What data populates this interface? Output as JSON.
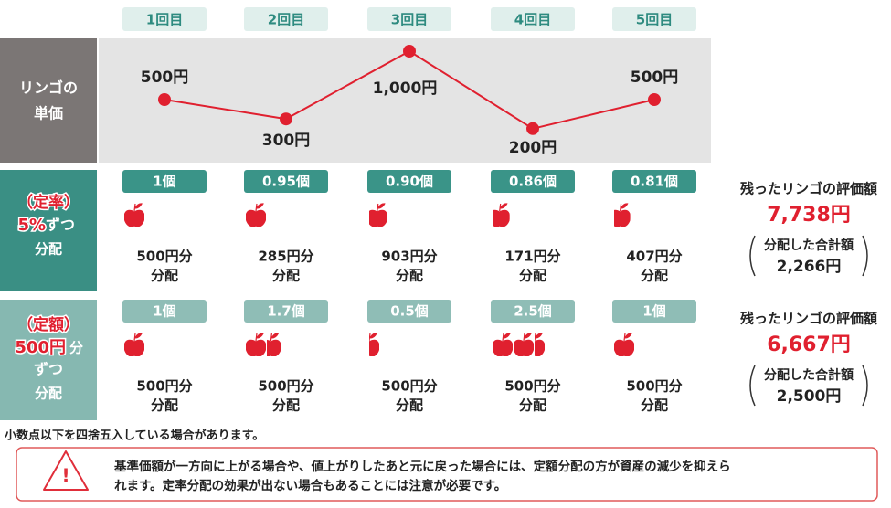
{
  "rounds": [
    "1回目",
    "2回目",
    "3回目",
    "4回目",
    "5回目"
  ],
  "price": {
    "label_lines": [
      "リンゴの",
      "単価"
    ],
    "values": [
      500,
      300,
      1000,
      200,
      500
    ],
    "value_labels": [
      "500円",
      "300円",
      "1,000円",
      "200円",
      "500円"
    ],
    "ylim": [
      0,
      1000
    ]
  },
  "rate": {
    "label_parts": [
      "（定率）",
      "5%",
      "ずつ",
      "分配"
    ],
    "units": [
      "1個",
      "0.95個",
      "0.90個",
      "0.86個",
      "0.81個"
    ],
    "amounts": [
      "500円分",
      "285円分",
      "903円分",
      "171円分",
      "407円分"
    ],
    "dist": "分配",
    "summary": {
      "title": "残ったリンゴの評価額",
      "value": "7,738円",
      "sub_title": "分配した合計額",
      "sub_value": "2,266円"
    }
  },
  "fixed": {
    "label_parts": [
      "（定額）",
      "500円",
      "分",
      "ずつ",
      "分配"
    ],
    "units": [
      "1個",
      "1.7個",
      "0.5個",
      "2.5個",
      "1個"
    ],
    "amounts": [
      "500円分",
      "500円分",
      "500円分",
      "500円分",
      "500円分"
    ],
    "dist": "分配",
    "summary": {
      "title": "残ったリンゴの評価額",
      "value": "6,667円",
      "sub_title": "分配した合計額",
      "sub_value": "2,500円"
    }
  },
  "note": "小数点以下を四捨五入している場合があります。",
  "warning": {
    "lines": [
      "基準価額が一方向に上がる場合や、値上がりしたあと元に戻った場合には、定額分配の方が資産の減少を抑えら",
      "れます。定率分配の効果が出ない場合もあることには注意が必要です。"
    ]
  }
}
